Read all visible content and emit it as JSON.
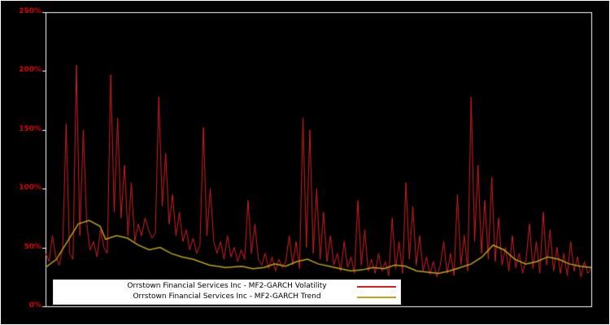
{
  "chart_data": {
    "type": "line",
    "title": "",
    "xlabel": "",
    "ylabel": "",
    "ylim": [
      0,
      250
    ],
    "y_ticks": [
      "0%",
      "50%",
      "100%",
      "150%",
      "200%",
      "250%"
    ],
    "y_tick_values": [
      0,
      50,
      100,
      150,
      200,
      250
    ],
    "x_ticks": [],
    "grid": false,
    "legend_position": "bottom-center",
    "background": "#000000",
    "frame_color": "#ffffff",
    "tick_label_color": "#d40000",
    "series": [
      {
        "name": "Orrstown Financial Services Inc - MF2-GARCH Volatility",
        "color": "#d62020",
        "values": [
          45,
          38,
          60,
          42,
          35,
          50,
          155,
          45,
          40,
          205,
          60,
          150,
          70,
          48,
          55,
          42,
          65,
          50,
          45,
          197,
          80,
          160,
          75,
          120,
          60,
          105,
          55,
          70,
          60,
          75,
          65,
          58,
          62,
          178,
          85,
          130,
          70,
          95,
          60,
          80,
          55,
          65,
          48,
          58,
          45,
          52,
          152,
          60,
          100,
          55,
          45,
          55,
          40,
          60,
          42,
          50,
          38,
          48,
          40,
          90,
          45,
          70,
          40,
          35,
          45,
          32,
          42,
          30,
          40,
          33,
          38,
          60,
          35,
          55,
          32,
          160,
          50,
          150,
          45,
          100,
          40,
          80,
          38,
          60,
          35,
          45,
          30,
          55,
          33,
          42,
          28,
          90,
          35,
          65,
          30,
          40,
          28,
          45,
          30,
          38,
          26,
          75,
          32,
          55,
          28,
          105,
          40,
          85,
          35,
          60,
          30,
          42,
          27,
          38,
          25,
          35,
          55,
          28,
          45,
          26,
          95,
          35,
          60,
          30,
          178,
          55,
          120,
          45,
          90,
          40,
          110,
          38,
          75,
          35,
          50,
          30,
          60,
          33,
          45,
          28,
          40,
          70,
          32,
          55,
          28,
          80,
          35,
          65,
          30,
          50,
          28,
          45,
          26,
          55,
          30,
          42,
          25,
          38,
          28,
          32
        ]
      },
      {
        "name": "Orrstown Financial Services Inc - MF2-GARCH Trend",
        "color": "#bfa415",
        "points": [
          [
            0,
            33
          ],
          [
            0.02,
            40
          ],
          [
            0.04,
            55
          ],
          [
            0.06,
            70
          ],
          [
            0.08,
            73
          ],
          [
            0.1,
            68
          ],
          [
            0.11,
            57
          ],
          [
            0.13,
            60
          ],
          [
            0.15,
            58
          ],
          [
            0.17,
            52
          ],
          [
            0.19,
            48
          ],
          [
            0.21,
            50
          ],
          [
            0.23,
            45
          ],
          [
            0.25,
            42
          ],
          [
            0.27,
            40
          ],
          [
            0.3,
            35
          ],
          [
            0.33,
            33
          ],
          [
            0.36,
            34
          ],
          [
            0.38,
            32
          ],
          [
            0.4,
            33
          ],
          [
            0.42,
            36
          ],
          [
            0.44,
            34
          ],
          [
            0.46,
            38
          ],
          [
            0.48,
            40
          ],
          [
            0.5,
            36
          ],
          [
            0.52,
            34
          ],
          [
            0.54,
            32
          ],
          [
            0.56,
            30
          ],
          [
            0.58,
            31
          ],
          [
            0.6,
            33
          ],
          [
            0.62,
            32
          ],
          [
            0.64,
            35
          ],
          [
            0.66,
            34
          ],
          [
            0.68,
            30
          ],
          [
            0.7,
            29
          ],
          [
            0.72,
            28
          ],
          [
            0.74,
            30
          ],
          [
            0.76,
            33
          ],
          [
            0.78,
            36
          ],
          [
            0.8,
            42
          ],
          [
            0.82,
            52
          ],
          [
            0.84,
            48
          ],
          [
            0.86,
            40
          ],
          [
            0.88,
            36
          ],
          [
            0.9,
            38
          ],
          [
            0.92,
            42
          ],
          [
            0.94,
            40
          ],
          [
            0.96,
            36
          ],
          [
            0.98,
            34
          ],
          [
            1.0,
            33
          ]
        ]
      }
    ]
  },
  "legend": {
    "volatility_label": "Orrstown Financial Services Inc - MF2-GARCH Volatility",
    "trend_label": "Orrstown Financial Services Inc - MF2-GARCH Trend"
  }
}
